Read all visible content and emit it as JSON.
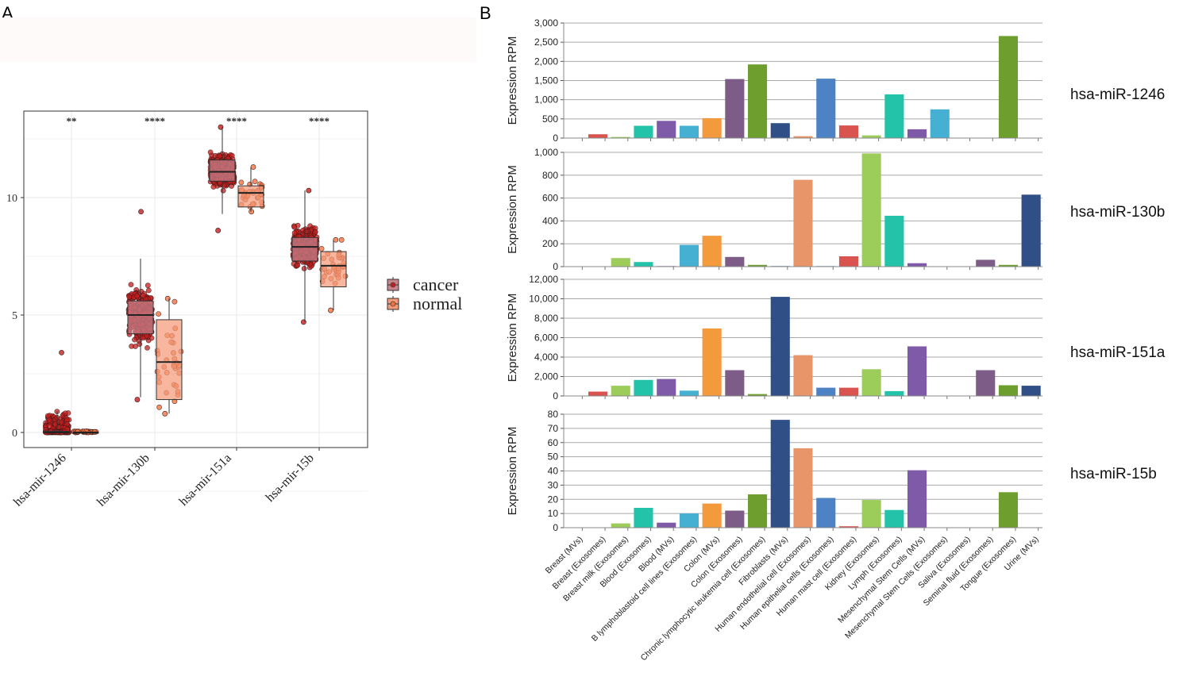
{
  "panel_a": {
    "letter": "A",
    "legend": {
      "cancer": "cancer",
      "normal": "normal"
    },
    "colors": {
      "cancer_box": "#c9848d",
      "normal_box": "#f59a78",
      "cancer_point": "#c41e1e",
      "normal_point": "#f5733f",
      "grid": "#e8e8e8",
      "frame": "#333333"
    }
  },
  "panel_b": {
    "letter": "B",
    "colors": {
      "grid": "#a8a8a8",
      "axis": "#888888"
    }
  },
  "chart_data": [
    {
      "type": "box",
      "title": "",
      "xlabel": "",
      "ylabel": "",
      "ylim": [
        -0.4,
        13.8
      ],
      "yticks": [
        0,
        5,
        10
      ],
      "ytick_labels": [
        "0",
        "5",
        "10"
      ],
      "categories": [
        "hsa-mir-1246",
        "hsa-mir-130b",
        "hsa-mir-151a",
        "hsa-mir-15b"
      ],
      "significance": [
        "**",
        "****",
        "****",
        "****"
      ],
      "legend_position": "right",
      "series": [
        {
          "name": "cancer",
          "boxes": [
            {
              "q1": 0,
              "median": 0,
              "q3": 0.05,
              "whisker_low": 0,
              "whisker_high": 0.9,
              "min": 0,
              "max": 3.4
            },
            {
              "q1": 4.2,
              "median": 5.0,
              "q3": 5.6,
              "whisker_low": 1.5,
              "whisker_high": 7.4,
              "min": 1.4,
              "max": 9.4
            },
            {
              "q1": 10.7,
              "median": 11.1,
              "q3": 11.6,
              "whisker_low": 9.3,
              "whisker_high": 13.0,
              "min": 8.6,
              "max": 13.0
            },
            {
              "q1": 7.3,
              "median": 7.9,
              "q3": 8.3,
              "whisker_low": 4.7,
              "whisker_high": 10.3,
              "min": 4.7,
              "max": 10.3
            }
          ]
        },
        {
          "name": "normal",
          "boxes": [
            {
              "q1": 0,
              "median": 0,
              "q3": 0.02,
              "whisker_low": 0,
              "whisker_high": 0.05,
              "min": 0,
              "max": 0.05
            },
            {
              "q1": 1.4,
              "median": 3.0,
              "q3": 4.8,
              "whisker_low": 0.8,
              "whisker_high": 5.7,
              "min": 0.8,
              "max": 5.7
            },
            {
              "q1": 9.6,
              "median": 10.2,
              "q3": 10.5,
              "whisker_low": 9.4,
              "whisker_high": 11.3,
              "min": 9.4,
              "max": 11.3
            },
            {
              "q1": 6.2,
              "median": 7.1,
              "q3": 7.7,
              "whisker_low": 5.2,
              "whisker_high": 8.2,
              "min": 5.2,
              "max": 8.2
            }
          ]
        }
      ]
    },
    {
      "type": "bar",
      "title": "hsa-miR-1246",
      "ylabel": "Expression RPM",
      "ylim": [
        0,
        3000
      ],
      "yticks": [
        0,
        500,
        1000,
        1500,
        2000,
        2500,
        3000
      ],
      "ytick_labels": [
        "0",
        "500",
        "1,000",
        "1,500",
        "2,000",
        "2,500",
        "3,000"
      ],
      "values": [
        0,
        100,
        30,
        320,
        450,
        320,
        520,
        1540,
        1920,
        390,
        50,
        1550,
        330,
        70,
        1140,
        230,
        750,
        0,
        0,
        2660,
        0
      ]
    },
    {
      "type": "bar",
      "title": "hsa-miR-130b",
      "ylabel": "Expression RPM",
      "ylim": [
        0,
        1000
      ],
      "yticks": [
        0,
        200,
        400,
        600,
        800,
        1000
      ],
      "ytick_labels": [
        "0",
        "200",
        "400",
        "600",
        "800",
        "1,000"
      ],
      "values": [
        0,
        0,
        75,
        40,
        5,
        190,
        270,
        85,
        15,
        5,
        760,
        5,
        90,
        990,
        445,
        30,
        0,
        0,
        60,
        15,
        630
      ]
    },
    {
      "type": "bar",
      "title": "hsa-miR-151a",
      "ylabel": "Expression RPM",
      "ylim": [
        0,
        12000
      ],
      "yticks": [
        0,
        2000,
        4000,
        6000,
        8000,
        10000,
        12000
      ],
      "ytick_labels": [
        "0",
        "2,000",
        "4,000",
        "6,000",
        "8,000",
        "10,000",
        "12,000"
      ],
      "values": [
        0,
        450,
        1050,
        1650,
        1750,
        550,
        6950,
        2650,
        200,
        10200,
        4200,
        850,
        850,
        2750,
        500,
        5100,
        0,
        0,
        2650,
        1100,
        1050
      ]
    },
    {
      "type": "bar",
      "title": "hsa-miR-15b",
      "ylabel": "Expression RPM",
      "ylim": [
        0,
        80
      ],
      "yticks": [
        0,
        10,
        20,
        30,
        40,
        50,
        60,
        70,
        80
      ],
      "ytick_labels": [
        "0",
        "10",
        "20",
        "30",
        "40",
        "50",
        "60",
        "70",
        "80"
      ],
      "values": [
        0,
        0,
        3,
        14,
        3.5,
        10,
        17,
        12,
        23.5,
        76,
        56,
        21,
        1,
        19.5,
        12.5,
        40.5,
        0,
        0,
        0,
        25,
        0
      ]
    }
  ],
  "bar_categories": [
    "Breast (MVs)",
    "Breast (Exosomes)",
    "Breast milk (Exosomes)",
    "Blood (Exosomes)",
    "Blood (MVs)",
    "B lymphoblastoid cell lines (Exosomes)",
    "Colon (MVs)",
    "Colon (Exosomes)",
    "Chronic lymphocytic leukemia cell (Exosomes)",
    "Fibroblasts (MVs)",
    "Human endothelial cell (Exosomes)",
    "Human epithelial cells (Exosomes)",
    "Human mast cell (Exosomes)",
    "Kidney (Exosomes)",
    "Lymph (Exosomes)",
    "Mesenchymal Stem Cells (MVs)",
    "Mesenchymal Stem Cells (Exosomes)",
    "Saliva (Exosomes)",
    "Seminal fluid (Exosomes)",
    "Tongue (Exosomes)",
    "Urine (MVs)"
  ],
  "bar_colors": [
    "#d6d6d6",
    "#d9534f",
    "#9ccc5a",
    "#22c3a9",
    "#7e5aa8",
    "#46b0d3",
    "#f39a3c",
    "#7d5c88",
    "#6d9e2e",
    "#2f4f86",
    "#e9956a",
    "#4d82c4",
    "#d9534f",
    "#9ccc5a",
    "#22c3a9",
    "#7e5aa8",
    "#46b0d3",
    "#f39a3c",
    "#7d5c88",
    "#6d9e2e",
    "#2f4f86"
  ]
}
